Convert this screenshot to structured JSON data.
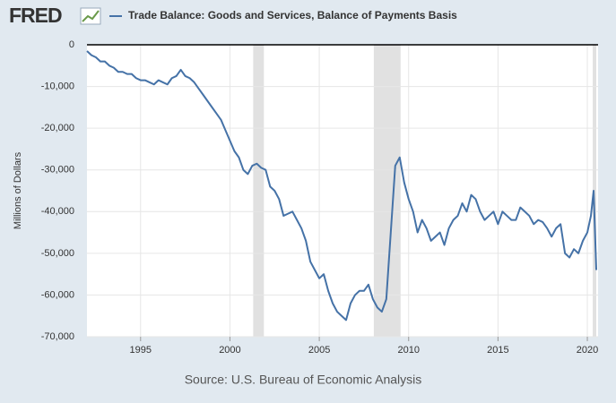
{
  "chart_data": {
    "type": "line",
    "logo": "FRED",
    "ylabel": "Millions of Dollars",
    "source": "Source: U.S. Bureau of Economic Analysis",
    "xlim": [
      1992.0,
      2020.6
    ],
    "xticks": [
      1995,
      2000,
      2005,
      2010,
      2015,
      2020
    ],
    "ylim": [
      -70000,
      0
    ],
    "yticks": [
      0,
      {
        "value": -10000,
        "label": "-10,000"
      },
      {
        "value": -20000,
        "label": "-20,000"
      },
      {
        "value": -30000,
        "label": "-30,000"
      },
      {
        "value": -40000,
        "label": "-40,000"
      },
      {
        "value": -50000,
        "label": "-50,000"
      },
      {
        "value": -60000,
        "label": "-60,000"
      },
      {
        "value": -70000,
        "label": "-70,000"
      }
    ],
    "grid": true,
    "recessions": [
      [
        2001.3,
        2001.9
      ],
      [
        2008.05,
        2009.55
      ],
      [
        2020.3,
        2020.5
      ]
    ],
    "x": [
      1992.0,
      1992.25,
      1992.5,
      1992.75,
      1993.0,
      1993.25,
      1993.5,
      1993.75,
      1994.0,
      1994.25,
      1994.5,
      1994.75,
      1995.0,
      1995.25,
      1995.5,
      1995.75,
      1996.0,
      1996.25,
      1996.5,
      1996.75,
      1997.0,
      1997.25,
      1997.5,
      1997.75,
      1998.0,
      1998.25,
      1998.5,
      1998.75,
      1999.0,
      1999.25,
      1999.5,
      1999.75,
      2000.0,
      2000.25,
      2000.5,
      2000.75,
      2001.0,
      2001.25,
      2001.5,
      2001.75,
      2002.0,
      2002.25,
      2002.5,
      2002.75,
      2003.0,
      2003.25,
      2003.5,
      2003.75,
      2004.0,
      2004.25,
      2004.5,
      2004.75,
      2005.0,
      2005.25,
      2005.5,
      2005.75,
      2006.0,
      2006.25,
      2006.5,
      2006.75,
      2007.0,
      2007.25,
      2007.5,
      2007.75,
      2008.0,
      2008.25,
      2008.5,
      2008.75,
      2009.0,
      2009.25,
      2009.5,
      2009.75,
      2010.0,
      2010.25,
      2010.5,
      2010.75,
      2011.0,
      2011.25,
      2011.5,
      2011.75,
      2012.0,
      2012.25,
      2012.5,
      2012.75,
      2013.0,
      2013.25,
      2013.5,
      2013.75,
      2014.0,
      2014.25,
      2014.5,
      2014.75,
      2015.0,
      2015.25,
      2015.5,
      2015.75,
      2016.0,
      2016.25,
      2016.5,
      2016.75,
      2017.0,
      2017.25,
      2017.5,
      2017.75,
      2018.0,
      2018.25,
      2018.5,
      2018.75,
      2019.0,
      2019.25,
      2019.5,
      2019.75,
      2020.0,
      2020.2,
      2020.35,
      2020.5
    ],
    "series": [
      {
        "name": "Trade Balance: Goods and Services, Balance of Payments Basis",
        "color": "#4572a7",
        "values": [
          -1500,
          -2500,
          -3000,
          -4000,
          -4000,
          -5000,
          -5500,
          -6500,
          -6500,
          -7000,
          -7000,
          -8000,
          -8500,
          -8500,
          -9000,
          -9500,
          -8500,
          -9000,
          -9500,
          -8000,
          -7500,
          -6000,
          -7500,
          -8000,
          -9000,
          -10500,
          -12000,
          -13500,
          -15000,
          -16500,
          -18000,
          -20500,
          -23000,
          -25500,
          -27000,
          -30000,
          -31000,
          -29000,
          -28500,
          -29500,
          -30000,
          -34000,
          -35000,
          -37000,
          -41000,
          -40500,
          -40000,
          -42000,
          -44000,
          -47000,
          -52000,
          -54000,
          -56000,
          -55000,
          -59000,
          -62000,
          -64000,
          -65000,
          -66000,
          -62000,
          -60000,
          -59000,
          -59000,
          -57500,
          -61000,
          -63000,
          -64000,
          -61000,
          -45000,
          -29000,
          -27000,
          -33000,
          -37000,
          -40000,
          -45000,
          -42000,
          -44000,
          -47000,
          -46000,
          -45000,
          -48000,
          -44000,
          -42000,
          -41000,
          -38000,
          -40000,
          -36000,
          -37000,
          -40000,
          -42000,
          -41000,
          -40000,
          -43000,
          -40000,
          -41000,
          -42000,
          -42000,
          -39000,
          -40000,
          -41000,
          -43000,
          -42000,
          -42500,
          -44000,
          -46000,
          -44000,
          -43000,
          -50000,
          -51000,
          -49000,
          -50000,
          -47000,
          -45000,
          -41000,
          -35000,
          -54000
        ]
      }
    ]
  }
}
